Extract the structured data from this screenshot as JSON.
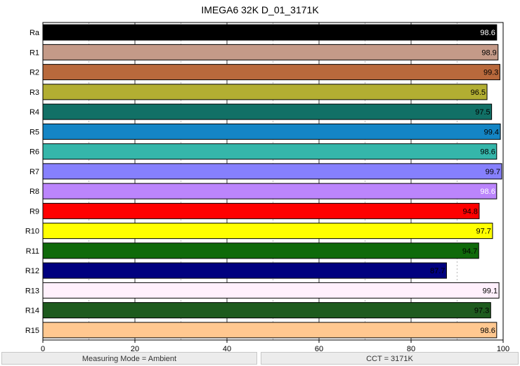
{
  "chart_data": {
    "type": "bar",
    "orientation": "horizontal",
    "title": "IMEGA6 32K D_01_3171K",
    "xlabel": "",
    "ylabel": "",
    "xlim": [
      0,
      100
    ],
    "x_ticks": [
      0,
      20,
      40,
      60,
      80,
      100
    ],
    "grid": "vertical dashed every 10",
    "categories": [
      "Ra",
      "R1",
      "R2",
      "R3",
      "R4",
      "R5",
      "R6",
      "R7",
      "R8",
      "R9",
      "R10",
      "R11",
      "R12",
      "R13",
      "R14",
      "R15"
    ],
    "values": [
      98.6,
      98.9,
      99.3,
      96.5,
      97.5,
      99.4,
      98.6,
      99.7,
      98.6,
      94.8,
      97.7,
      94.7,
      87.7,
      99.1,
      97.3,
      98.6
    ],
    "value_labels": [
      "98.6",
      "98.9",
      "99.3",
      "96.5",
      "97.5",
      "99.4",
      "98.6",
      "99.7",
      "98.6",
      "94.8",
      "97.7",
      "94.7",
      "87.7",
      "99.1",
      "97.3",
      "98.6"
    ],
    "colors": [
      "#000000",
      "#c49a88",
      "#b8693c",
      "#b2ae32",
      "#117066",
      "#1485c5",
      "#35b6aa",
      "#8680fd",
      "#bb85fc",
      "#ff0000",
      "#ffff00",
      "#0f6a0a",
      "#00007f",
      "#fff0fc",
      "#1e5b1e",
      "#ffc890"
    ],
    "label_colors": [
      "#ffffff",
      "#000000",
      "#000000",
      "#000000",
      "#000000",
      "#000000",
      "#000000",
      "#000000",
      "#ffffff",
      "#000000",
      "#000000",
      "#000000",
      "#000000",
      "#000000",
      "#000000",
      "#000000"
    ]
  },
  "footer": {
    "left": "Measuring Mode = Ambient",
    "right": "CCT = 3171K"
  }
}
